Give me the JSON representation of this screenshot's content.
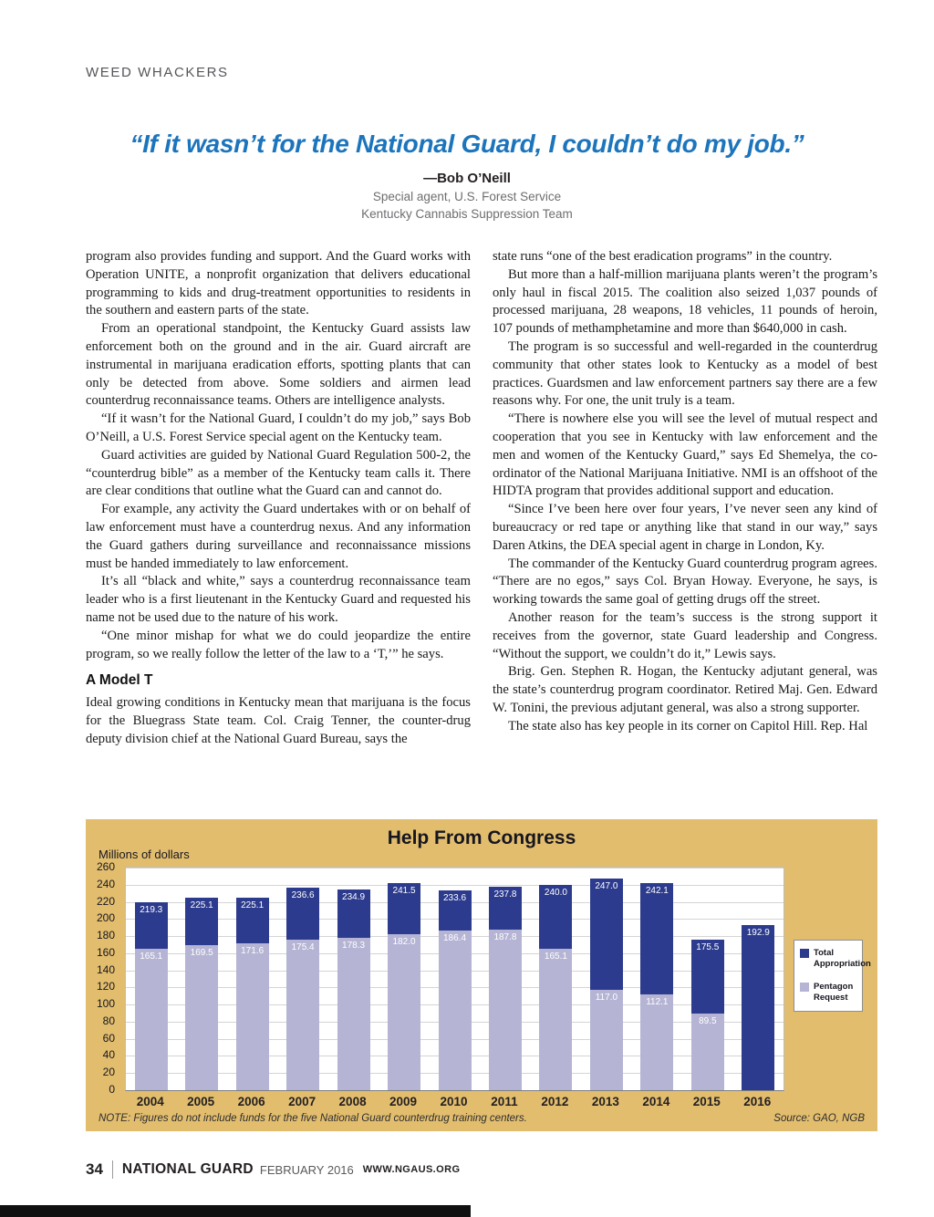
{
  "kicker": "WEED WHACKERS",
  "pull_quote": {
    "text": "“If it wasn’t for the National Guard, I couldn’t do my job.”",
    "attribution": "—Bob O’Neill",
    "role": "Special agent, U.S. Forest Service",
    "team": "Kentucky Cannabis Suppression Team"
  },
  "article": {
    "left_column": [
      "program also provides funding and support. And the Guard works with Operation UNITE, a nonprofit organization that delivers educational programming to kids and drug-treatment opportunities to residents in the southern and eastern parts of the state.",
      "From an operational standpoint, the Kentucky Guard assists law enforcement both on the ground and in the air. Guard aircraft are instrumental in marijuana eradication efforts, spotting plants that can only be detected from above. Some soldiers and airmen lead counterdrug reconnaissance teams. Others are intelligence analysts.",
      "“If it wasn’t for the National Guard, I couldn’t do my job,” says Bob O’Neill, a U.S. Forest Service special agent on the Kentucky team.",
      "Guard activities are guided by National Guard Regulation 500-2, the “counterdrug bible” as a member of the Kentucky team calls it. There are clear conditions that outline what the Guard can and cannot do.",
      "For example, any activity the Guard undertakes with or on behalf of law enforcement must have a counterdrug nexus. And any information the Guard gathers during surveillance and reconnaissance missions must be handed immediately to law enforcement.",
      "It’s all “black and white,” says a counterdrug reconnaissance team leader who is a first lieutenant in the Kentucky Guard and requested his name not be used due to the nature of his work.",
      "“One minor mishap for what we do could jeopardize the entire program, so we really follow the letter of the law to a ‘T,’” he says."
    ],
    "subhead": "A Model T",
    "left_column_continued": [
      "Ideal growing conditions in Kentucky mean that marijuana is the focus for the Bluegrass State team. Col. Craig Tenner, the counter-drug deputy division chief at the National Guard Bureau, says the"
    ],
    "right_column": [
      "state runs “one of the best eradication programs” in the country.",
      "But more than a half-million marijuana plants weren’t the program’s only haul in fiscal 2015. The coalition also seized 1,037 pounds of processed marijuana, 28 weapons, 18 vehicles, 11 pounds of heroin, 107 pounds of methamphetamine and more than $640,000 in cash.",
      "The program is so successful and well-regarded in the counterdrug community that other states look to Kentucky as a model of best practices. Guardsmen and law enforcement partners say there are a few reasons why. For one, the unit truly is a team.",
      "“There is nowhere else you will see the level of mutual respect and cooperation that you see in Kentucky with law enforcement and the men and women of the Kentucky Guard,” says Ed Shemelya, the co-ordinator of the National Marijuana Initiative. NMI is an offshoot of the HIDTA program that provides additional support and education.",
      "“Since I’ve been here over four years, I’ve never seen any kind of bureaucracy or red tape or anything like that stand in our way,” says Daren Atkins, the DEA special agent in charge in London, Ky.",
      "The commander of the Kentucky Guard counterdrug program agrees. “There are no egos,” says Col. Bryan Howay. Everyone, he says, is working towards the same goal of getting drugs off the street.",
      "Another reason for the team’s success is the strong support it receives from the governor, state Guard leadership and Congress. “Without the support, we couldn’t do it,” Lewis says.",
      "Brig. Gen. Stephen R. Hogan, the Kentucky adjutant general, was the state’s counterdrug program coordinator. Retired Maj. Gen. Edward W. Tonini, the previous adjutant general, was also a strong supporter.",
      "The state also has key people in its corner on Capitol Hill. Rep. Hal"
    ]
  },
  "chart_data": {
    "type": "bar",
    "title": "Help From Congress",
    "ylabel": "Millions of dollars",
    "ylim": [
      0,
      260
    ],
    "ytick_step": 20,
    "grid": true,
    "legend_position": "right",
    "bar_style": "overlay",
    "categories": [
      "2004",
      "2005",
      "2006",
      "2007",
      "2008",
      "2009",
      "2010",
      "2011",
      "2012",
      "2013",
      "2014",
      "2015",
      "2016"
    ],
    "series": [
      {
        "name": "Total Appropriation",
        "color": "#2c3b8d",
        "values": [
          219.3,
          225.1,
          225.1,
          236.6,
          234.9,
          241.5,
          233.6,
          237.8,
          240.0,
          247.0,
          242.1,
          175.5,
          192.9
        ]
      },
      {
        "name": "Pentagon Request",
        "color": "#b5b4d4",
        "values": [
          165.1,
          169.5,
          171.6,
          175.4,
          178.3,
          182.0,
          186.4,
          187.8,
          165.1,
          117.0,
          112.1,
          89.5,
          null
        ]
      }
    ],
    "note": "NOTE: Figures do not include funds for the five National Guard counterdrug training centers.",
    "source": "Source: GAO, NGB",
    "panel_color": "#e2bd6e"
  },
  "footer": {
    "page_number": "34",
    "magazine": "NATIONAL GUARD",
    "issue": "FEBRUARY 2016",
    "website": "WWW.NGAUS.ORG"
  }
}
